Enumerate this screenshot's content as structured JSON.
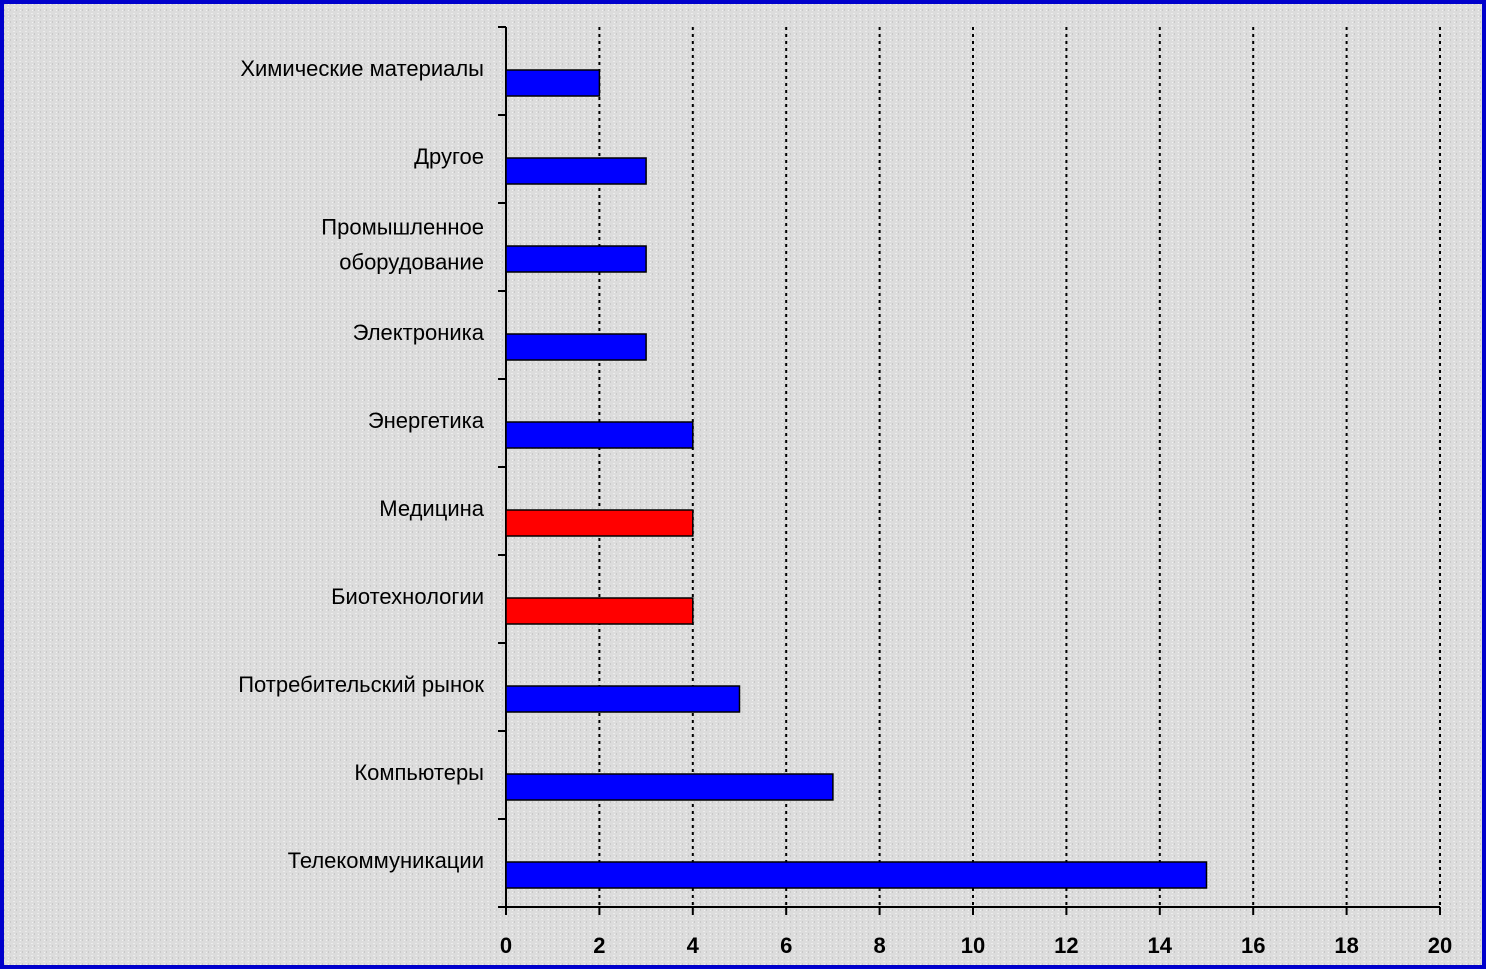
{
  "chart_data": {
    "type": "barh",
    "categories": [
      "Химические материалы",
      "Другое",
      "Промышленное\nоборудование",
      "Электроника",
      "Энергетика",
      "Медицина",
      "Биотехнологии",
      "Потребительский рынок",
      "Компьютеры",
      "Телекоммуникации"
    ],
    "values": [
      2,
      3,
      3,
      3,
      4,
      4,
      4,
      5,
      7,
      15
    ],
    "colors": [
      "#0000ff",
      "#0000ff",
      "#0000ff",
      "#0000ff",
      "#0000ff",
      "#ff0000",
      "#ff0000",
      "#0000ff",
      "#0000ff",
      "#0000ff"
    ],
    "xlim": [
      0,
      20
    ],
    "xticks": [
      0,
      2,
      4,
      6,
      8,
      10,
      12,
      14,
      16,
      18,
      20
    ],
    "grid": true
  }
}
